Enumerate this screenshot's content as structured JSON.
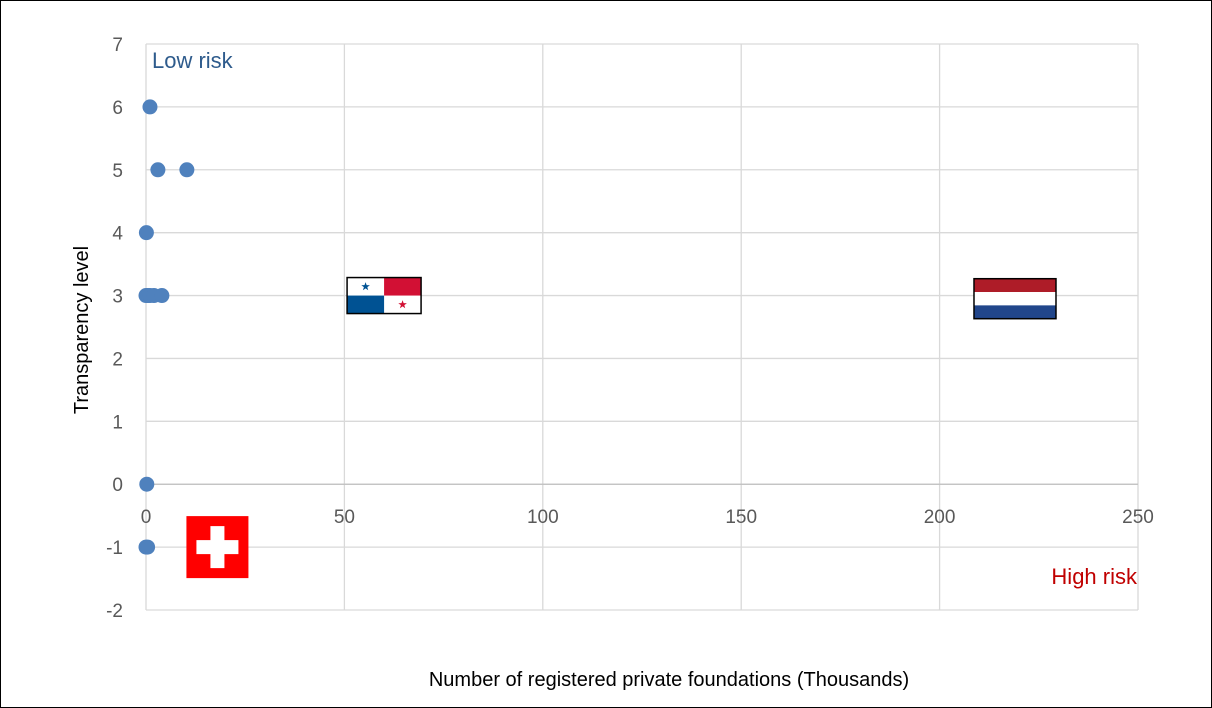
{
  "chart_data": {
    "type": "scatter",
    "title": "",
    "xlabel": "Number of registered private foundations (Thousands)",
    "ylabel": "Transparency level",
    "xlim": [
      0,
      250
    ],
    "ylim": [
      -2,
      7
    ],
    "x_ticks": [
      0,
      50,
      100,
      150,
      200,
      250
    ],
    "y_ticks": [
      -2,
      -1,
      0,
      1,
      2,
      3,
      4,
      5,
      6,
      7
    ],
    "grid": true,
    "legend": "none",
    "marker_color": "#4f81bd",
    "points": [
      {
        "x": 1.0,
        "y": 6
      },
      {
        "x": 3.0,
        "y": 5
      },
      {
        "x": 10.3,
        "y": 5
      },
      {
        "x": 0.1,
        "y": 4
      },
      {
        "x": 0.0,
        "y": 3
      },
      {
        "x": 0.5,
        "y": 3
      },
      {
        "x": 1.0,
        "y": 3
      },
      {
        "x": 2.0,
        "y": 3
      },
      {
        "x": 4.0,
        "y": 3
      },
      {
        "x": 0.2,
        "y": 0
      },
      {
        "x": 0.0,
        "y": -1
      },
      {
        "x": 0.4,
        "y": -1
      }
    ],
    "flag_markers": [
      {
        "icon": "panama-flag-icon",
        "x": 60,
        "y": 3
      },
      {
        "icon": "netherlands-flag-icon",
        "x": 219,
        "y": 2.95
      },
      {
        "icon": "switzerland-flag-icon",
        "x": 18,
        "y": -1
      }
    ],
    "annotations": {
      "low_risk": {
        "text": "Low risk",
        "color": "#2e5b8c"
      },
      "high_risk": {
        "text": "High risk",
        "color": "#c00000"
      }
    }
  }
}
